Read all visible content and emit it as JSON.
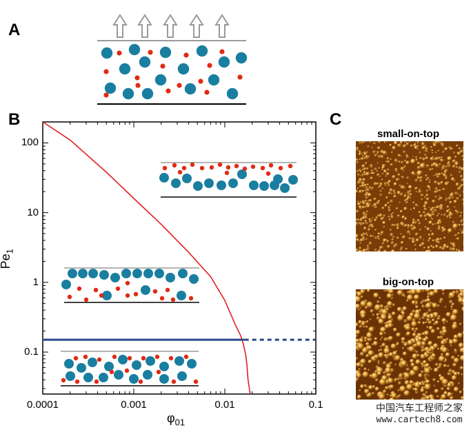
{
  "panels": {
    "a": {
      "label": "A"
    },
    "b": {
      "label": "B"
    },
    "c": {
      "label": "C"
    }
  },
  "chart_data": {
    "type": "line",
    "x_scale": "log",
    "y_scale": "log",
    "xlim": [
      0.0001,
      0.1
    ],
    "ylim": [
      0.025,
      200
    ],
    "x_ticks": [
      0.0001,
      0.001,
      0.01,
      0.1
    ],
    "x_tick_labels": [
      "0.0001",
      "0.001",
      "0.01",
      "0.1"
    ],
    "y_ticks": [
      0.1,
      1,
      10,
      100
    ],
    "y_tick_labels": [
      "0.1",
      "1",
      "10",
      "100"
    ],
    "xlabel": "φ",
    "xlabel_sub": "01",
    "ylabel": "Pe",
    "ylabel_sub": "1",
    "series": [
      {
        "name": "phase boundary",
        "color": "#e02020",
        "x": [
          0.0001,
          0.0002,
          0.0005,
          0.001,
          0.002,
          0.004,
          0.007,
          0.01,
          0.013,
          0.015,
          0.016,
          0.017,
          0.0175,
          0.018,
          0.019
        ],
        "y": [
          200,
          110,
          38,
          16,
          6.8,
          2.7,
          1.2,
          0.55,
          0.25,
          0.17,
          0.13,
          0.09,
          0.065,
          0.04,
          0.025
        ]
      },
      {
        "name": "Pe1 = 0.15 (solid)",
        "color": "#2f4d8a",
        "x": [
          0.0001,
          0.0165
        ],
        "y": [
          0.15,
          0.15
        ]
      },
      {
        "name": "Pe1 = 0.15 (dashed)",
        "color": "#2f4d8a",
        "dashed": true,
        "x": [
          0.0165,
          0.1
        ],
        "y": [
          0.15,
          0.15
        ]
      }
    ]
  },
  "panel_c": {
    "top_title": "small-on-top",
    "bottom_title": "big-on-top"
  },
  "watermark": {
    "line1": "中国汽车工程师之家",
    "line2": "www.cartech8.com"
  },
  "colors": {
    "big_particle": "#1a7ea0",
    "small_particle": "#e02a14",
    "curve": "#e02020",
    "blue_line": "#2f4d8a",
    "sem_bg": "#7a3d08",
    "sem_light": "#f0c060",
    "arrow": "#999999"
  }
}
